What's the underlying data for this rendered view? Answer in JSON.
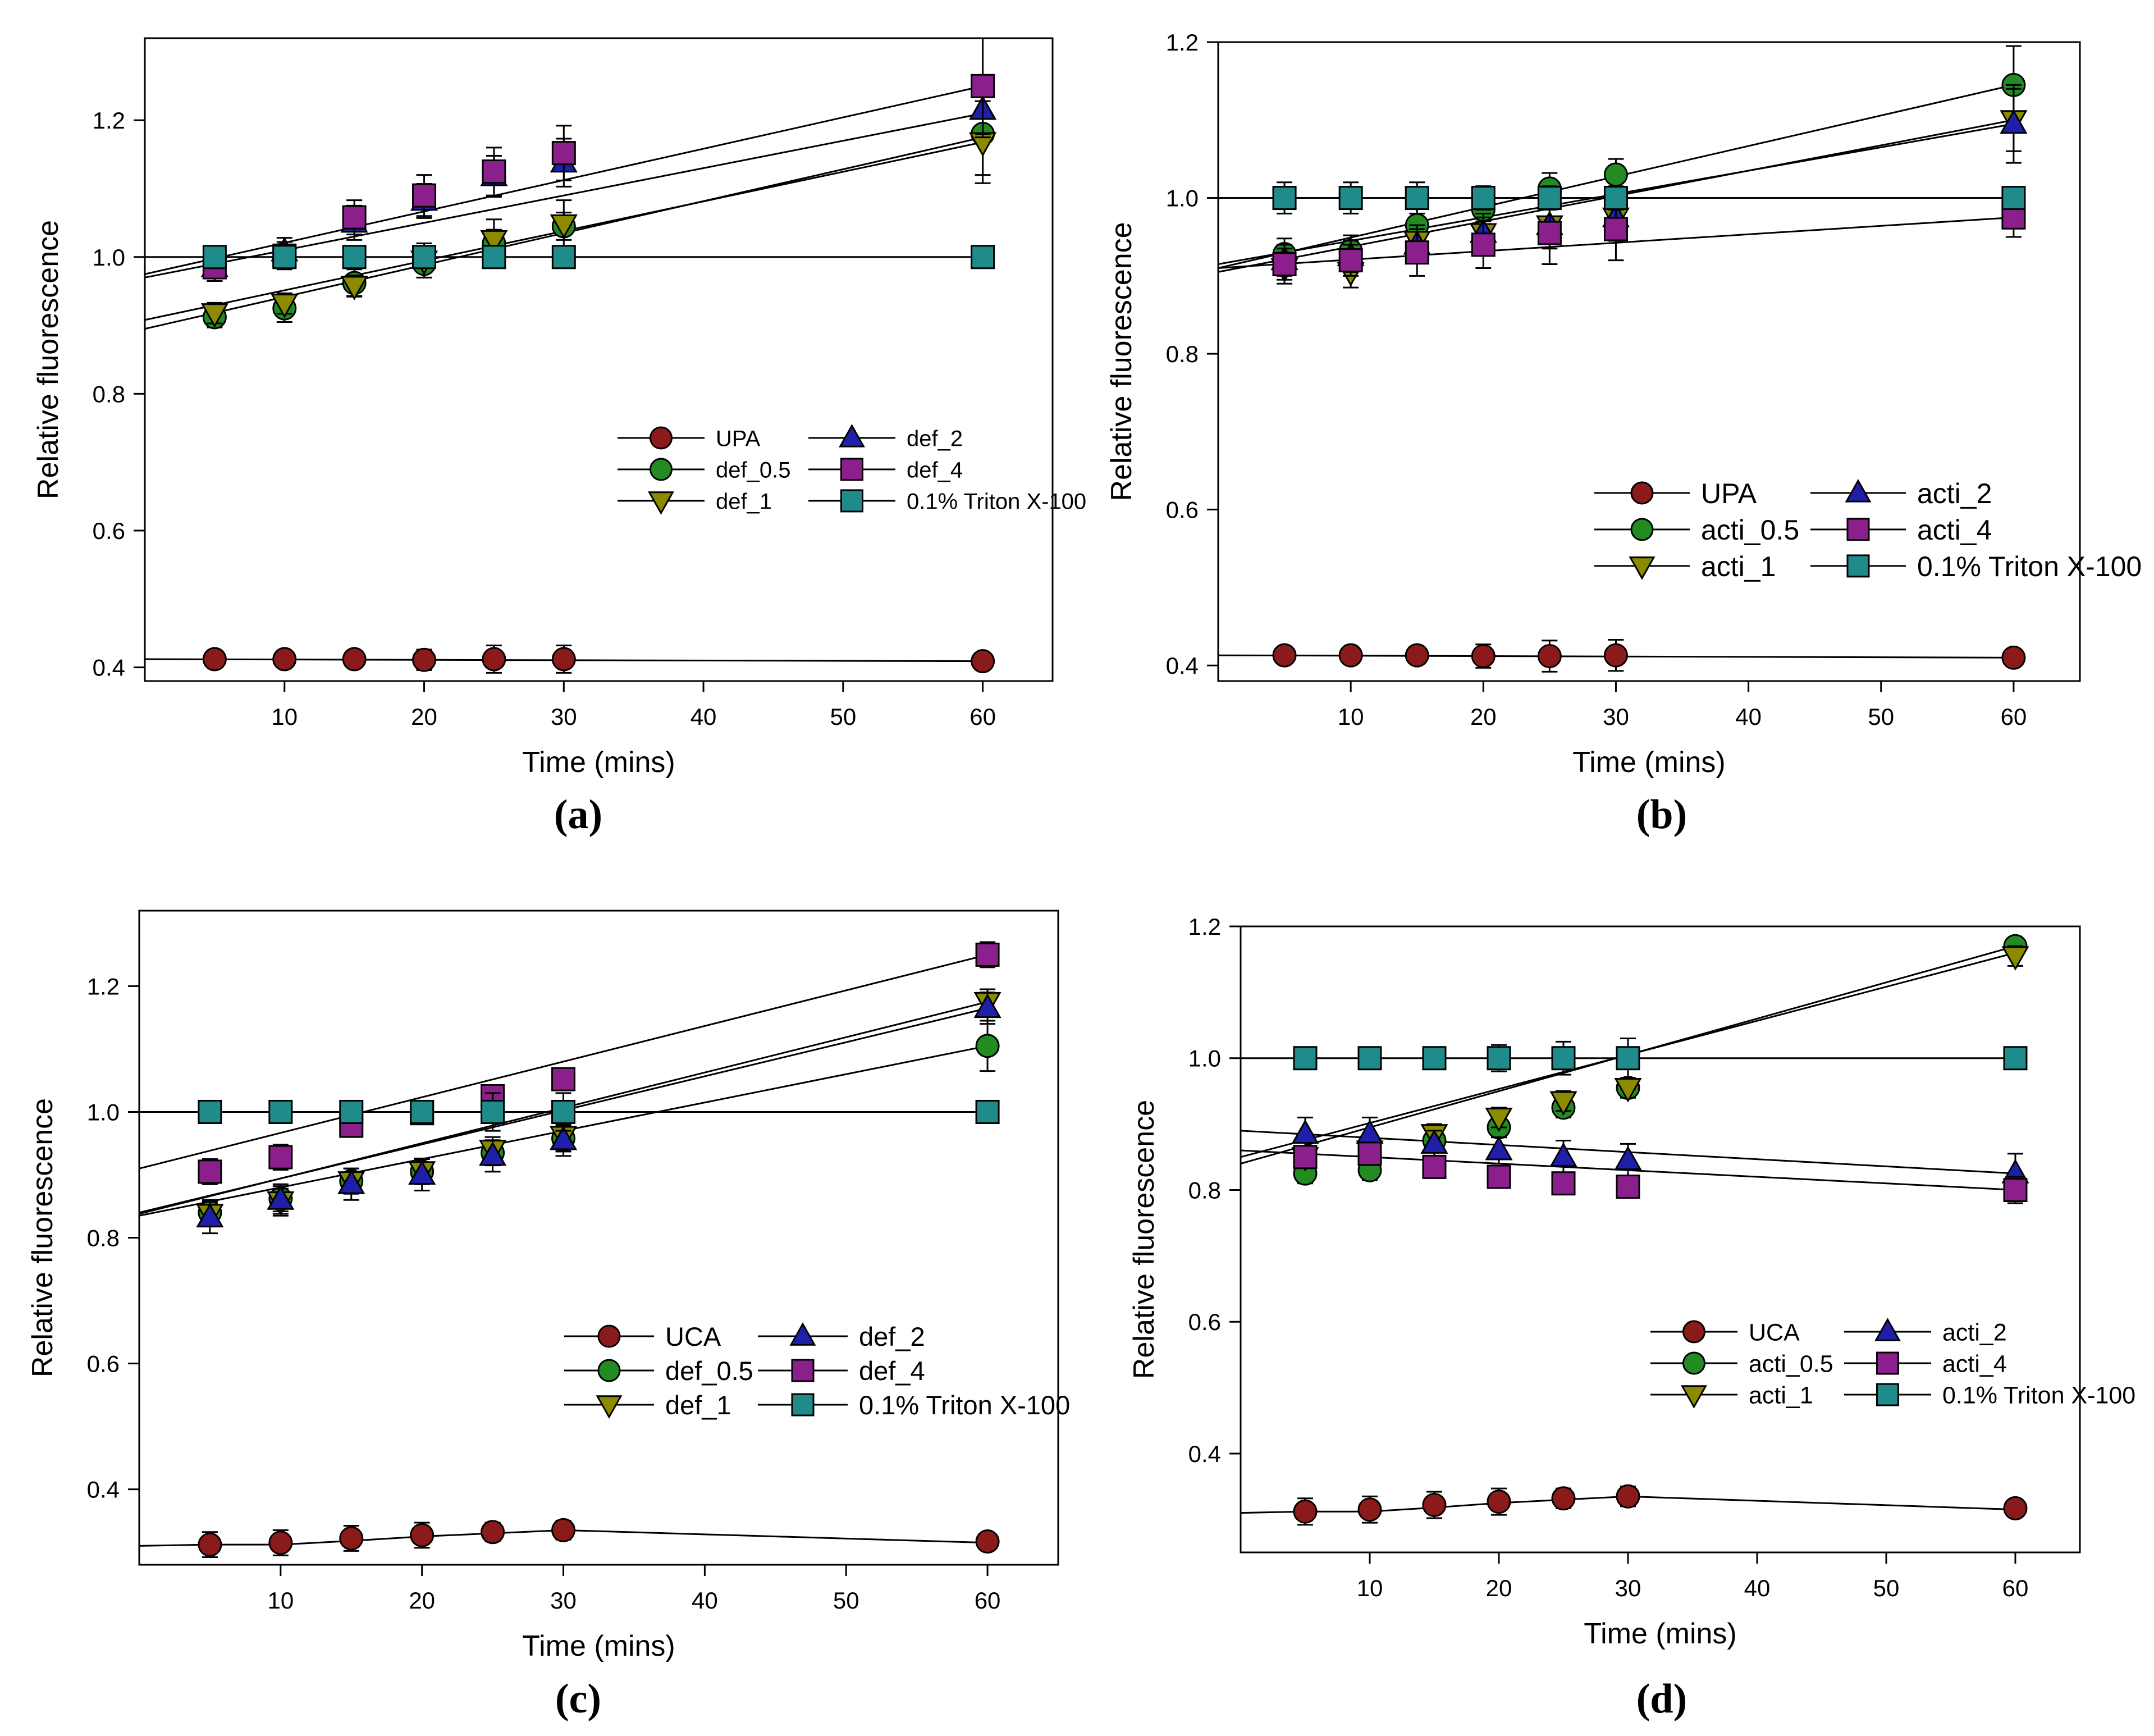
{
  "figure": {
    "panels": [
      "a",
      "b",
      "c",
      "d"
    ]
  },
  "colors": {
    "untreated": "#8B1A1A",
    "conc_0_5": "#228B22",
    "conc_1": "#8B8B00",
    "conc_2": "#1F1FAA",
    "conc_4": "#8B1F8B",
    "triton": "#1F8B8B",
    "line": "#000000"
  },
  "chart_data": [
    {
      "id": "a",
      "panel_label": "(a)",
      "type": "line",
      "xlabel": "Time (mins)",
      "ylabel": "Relative fluorescence",
      "xlim": [
        0,
        65
      ],
      "ylim": [
        0.38,
        1.32
      ],
      "xticks": [
        10,
        20,
        30,
        40,
        50,
        60
      ],
      "xtick_labels": [
        "10",
        "20",
        "30",
        "40",
        "50",
        "60"
      ],
      "yticks": [
        0.4,
        0.6,
        0.8,
        1.0,
        1.2
      ],
      "ytick_labels": [
        "0.4",
        "0.6",
        "0.8",
        "1.0",
        "1.2"
      ],
      "x": [
        5,
        10,
        15,
        20,
        25,
        30,
        60
      ],
      "legend_position": "lower-right",
      "series": [
        {
          "name": "UPA",
          "marker": "circle",
          "color_key": "untreated",
          "values": [
            0.412,
            0.412,
            0.412,
            0.411,
            0.412,
            0.412,
            0.409
          ],
          "errors": [
            0.01,
            0.01,
            0.01,
            0.015,
            0.02,
            0.02,
            0.01
          ],
          "fit": [
            0.412,
            0.409
          ]
        },
        {
          "name": "def_0.5",
          "marker": "circle",
          "color_key": "conc_0_5",
          "values": [
            0.912,
            0.925,
            0.962,
            0.99,
            1.02,
            1.045,
            1.18
          ],
          "errors": [
            0.015,
            0.02,
            0.02,
            0.02,
            0.02,
            0.02,
            0.06
          ],
          "fit": [
            0.895,
            1.175
          ]
        },
        {
          "name": "def_1",
          "marker": "triangle-down",
          "color_key": "conc_1",
          "values": [
            0.918,
            0.932,
            0.958,
            0.995,
            1.025,
            1.048,
            1.168
          ],
          "errors": [
            0.015,
            0.015,
            0.015,
            0.025,
            0.03,
            0.035,
            0.06
          ],
          "fit": [
            0.908,
            1.168
          ]
        },
        {
          "name": "def_2",
          "marker": "triangle-up",
          "color_key": "conc_2",
          "values": [
            0.985,
            1.008,
            1.05,
            1.082,
            1.118,
            1.138,
            1.215
          ],
          "errors": [
            0.02,
            0.02,
            0.025,
            0.025,
            0.03,
            0.035,
            0.04
          ],
          "fit": [
            0.97,
            1.21
          ]
        },
        {
          "name": "def_4",
          "marker": "square",
          "color_key": "conc_4",
          "values": [
            0.985,
            1.002,
            1.058,
            1.09,
            1.125,
            1.152,
            1.25
          ],
          "errors": [
            0.02,
            0.02,
            0.025,
            0.03,
            0.035,
            0.04,
            0.07
          ],
          "fit": [
            0.975,
            1.25
          ]
        },
        {
          "name": "0.1% Triton X-100",
          "marker": "square",
          "color_key": "triton",
          "values": [
            1.0,
            1.0,
            1.0,
            1.0,
            1.0,
            1.0,
            1.0
          ],
          "errors": [
            0.015,
            0.015,
            0.015,
            0.015,
            0.01,
            0.005,
            0.0
          ],
          "fit": [
            1.0,
            1.0
          ]
        }
      ]
    },
    {
      "id": "b",
      "panel_label": "(b)",
      "type": "line",
      "xlabel": "Time (mins)",
      "ylabel": "Relative fluorescence",
      "xlim": [
        0,
        65
      ],
      "ylim": [
        0.38,
        1.2
      ],
      "xticks": [
        10,
        20,
        30,
        40,
        50,
        60
      ],
      "xtick_labels": [
        "10",
        "20",
        "30",
        "40",
        "50",
        "60"
      ],
      "yticks": [
        0.4,
        0.6,
        0.8,
        1.0,
        1.2
      ],
      "ytick_labels": [
        "0.4",
        "0.6",
        "0.8",
        "1.0",
        "1.2"
      ],
      "x": [
        5,
        10,
        15,
        20,
        25,
        30,
        60
      ],
      "legend_position": "lower-right",
      "series": [
        {
          "name": "UPA",
          "marker": "circle",
          "color_key": "untreated",
          "values": [
            0.413,
            0.413,
            0.413,
            0.412,
            0.412,
            0.413,
            0.41
          ],
          "errors": [
            0.01,
            0.01,
            0.01,
            0.015,
            0.02,
            0.02,
            0.01
          ],
          "fit": [
            0.413,
            0.41
          ]
        },
        {
          "name": "acti_0.5",
          "marker": "circle",
          "color_key": "conc_0_5",
          "values": [
            0.928,
            0.932,
            0.965,
            0.985,
            1.012,
            1.03,
            1.145
          ],
          "errors": [
            0.02,
            0.02,
            0.025,
            0.03,
            0.02,
            0.02,
            0.05
          ],
          "fit": [
            0.91,
            1.145
          ]
        },
        {
          "name": "acti_1",
          "marker": "triangle-down",
          "color_key": "conc_1",
          "values": [
            0.91,
            0.905,
            0.945,
            0.955,
            0.965,
            0.975,
            1.1
          ],
          "errors": [
            0.02,
            0.02,
            0.02,
            0.02,
            0.02,
            0.03,
            0.04
          ],
          "fit": [
            0.905,
            1.1
          ]
        },
        {
          "name": "acti_2",
          "marker": "triangle-up",
          "color_key": "conc_2",
          "values": [
            0.92,
            0.925,
            0.94,
            0.955,
            0.965,
            0.975,
            1.095
          ],
          "errors": [
            0.02,
            0.02,
            0.02,
            0.025,
            0.03,
            0.03,
            0.05
          ],
          "fit": [
            0.915,
            1.095
          ]
        },
        {
          "name": "acti_4",
          "marker": "square",
          "color_key": "conc_4",
          "values": [
            0.915,
            0.92,
            0.93,
            0.94,
            0.955,
            0.96,
            0.975
          ],
          "errors": [
            0.02,
            0.02,
            0.03,
            0.03,
            0.04,
            0.04,
            0.025
          ],
          "fit": [
            0.91,
            0.975
          ]
        },
        {
          "name": "0.1% Triton X-100",
          "marker": "square",
          "color_key": "triton",
          "values": [
            1.0,
            1.0,
            1.0,
            1.0,
            1.0,
            1.0,
            1.0
          ],
          "errors": [
            0.02,
            0.02,
            0.02,
            0.015,
            0.015,
            0.015,
            0.0
          ],
          "fit": [
            1.0,
            1.0
          ]
        }
      ]
    },
    {
      "id": "c",
      "panel_label": "(c)",
      "type": "line",
      "xlabel": "Time (mins)",
      "ylabel": "Relative fluorescence",
      "xlim": [
        0,
        65
      ],
      "ylim": [
        0.28,
        1.32
      ],
      "xticks": [
        10,
        20,
        30,
        40,
        50,
        60
      ],
      "xtick_labels": [
        "10",
        "20",
        "30",
        "40",
        "50",
        "60"
      ],
      "yticks": [
        0.4,
        0.6,
        0.8,
        1.0,
        1.2
      ],
      "ytick_labels": [
        "0.4",
        "0.6",
        "0.8",
        "1.0",
        "1.2"
      ],
      "x": [
        5,
        10,
        15,
        20,
        25,
        30,
        60
      ],
      "legend_position": "lower-right",
      "series": [
        {
          "name": "UCA",
          "marker": "circle",
          "color_key": "untreated",
          "values": [
            0.312,
            0.315,
            0.322,
            0.327,
            0.332,
            0.335,
            0.317
          ],
          "errors": [
            0.02,
            0.02,
            0.02,
            0.02,
            0.015,
            0.015,
            0.01
          ],
          "fit": [
            0.31,
            0.312,
            0.318,
            0.325,
            0.33,
            0.335,
            0.315
          ]
        },
        {
          "name": "def_0.5",
          "marker": "circle",
          "color_key": "conc_0_5",
          "values": [
            0.84,
            0.862,
            0.89,
            0.905,
            0.935,
            0.958,
            1.105
          ],
          "errors": [
            0.02,
            0.02,
            0.02,
            0.02,
            0.02,
            0.02,
            0.04
          ],
          "fit": [
            0.835,
            1.105
          ]
        },
        {
          "name": "def_1",
          "marker": "triangle-down",
          "color_key": "conc_1",
          "values": [
            0.838,
            0.858,
            0.89,
            0.906,
            0.94,
            0.962,
            1.175
          ],
          "errors": [
            0.02,
            0.02,
            0.02,
            0.02,
            0.02,
            0.025,
            0.02
          ],
          "fit": [
            0.838,
            1.175
          ]
        },
        {
          "name": "def_2",
          "marker": "triangle-up",
          "color_key": "conc_2",
          "values": [
            0.832,
            0.86,
            0.885,
            0.9,
            0.93,
            0.955,
            1.165
          ],
          "errors": [
            0.025,
            0.025,
            0.025,
            0.025,
            0.025,
            0.025,
            0.025
          ],
          "fit": [
            0.84,
            1.165
          ]
        },
        {
          "name": "def_4",
          "marker": "square",
          "color_key": "conc_4",
          "values": [
            0.905,
            0.928,
            0.978,
            0.998,
            1.025,
            1.052,
            1.25
          ],
          "errors": [
            0.02,
            0.02,
            0.015,
            0.015,
            0.015,
            0.015,
            0.02
          ],
          "fit": [
            0.91,
            1.25
          ]
        },
        {
          "name": "0.1% Triton X-100",
          "marker": "square",
          "color_key": "triton",
          "values": [
            1.0,
            1.0,
            1.0,
            1.0,
            1.0,
            1.0,
            1.0
          ],
          "errors": [
            0.01,
            0.01,
            0.01,
            0.015,
            0.03,
            0.03,
            0.0
          ],
          "fit": [
            1.0,
            1.0
          ]
        }
      ]
    },
    {
      "id": "d",
      "panel_label": "(d)",
      "type": "line",
      "xlabel": "Time (mins)",
      "ylabel": "Relative fluorescence",
      "xlim": [
        0,
        65
      ],
      "ylim": [
        0.25,
        1.2
      ],
      "xticks": [
        10,
        20,
        30,
        40,
        50,
        60
      ],
      "xtick_labels": [
        "10",
        "20",
        "30",
        "40",
        "50",
        "60"
      ],
      "yticks": [
        0.4,
        0.6,
        0.8,
        1.0,
        1.2
      ],
      "ytick_labels": [
        "0.4",
        "0.6",
        "0.8",
        "1.0",
        "1.2"
      ],
      "x": [
        5,
        10,
        15,
        20,
        25,
        30,
        60
      ],
      "legend_position": "lower-right",
      "series": [
        {
          "name": "UCA",
          "marker": "circle",
          "color_key": "untreated",
          "values": [
            0.312,
            0.315,
            0.322,
            0.327,
            0.332,
            0.335,
            0.317
          ],
          "errors": [
            0.02,
            0.02,
            0.02,
            0.02,
            0.015,
            0.015,
            0.01
          ],
          "fit": [
            0.31,
            0.312,
            0.318,
            0.325,
            0.33,
            0.335,
            0.315
          ]
        },
        {
          "name": "acti_0.5",
          "marker": "circle",
          "color_key": "conc_0_5",
          "values": [
            0.825,
            0.83,
            0.875,
            0.895,
            0.925,
            0.955,
            1.17
          ],
          "errors": [
            0.015,
            0.015,
            0.015,
            0.015,
            0.015,
            0.015,
            0.01
          ],
          "fit": [
            0.84,
            1.17
          ]
        },
        {
          "name": "acti_1",
          "marker": "triangle-down",
          "color_key": "conc_1",
          "values": [
            0.85,
            0.86,
            0.885,
            0.91,
            0.935,
            0.955,
            1.155
          ],
          "errors": [
            0.015,
            0.015,
            0.015,
            0.015,
            0.015,
            0.015,
            0.015
          ],
          "fit": [
            0.85,
            1.16
          ]
        },
        {
          "name": "acti_2",
          "marker": "triangle-up",
          "color_key": "conc_2",
          "values": [
            0.885,
            0.885,
            0.87,
            0.86,
            0.85,
            0.845,
            0.825
          ],
          "errors": [
            0.025,
            0.025,
            0.02,
            0.02,
            0.025,
            0.025,
            0.03
          ],
          "fit": [
            0.89,
            0.825
          ]
        },
        {
          "name": "acti_4",
          "marker": "square",
          "color_key": "conc_4",
          "values": [
            0.85,
            0.855,
            0.835,
            0.82,
            0.81,
            0.805,
            0.8
          ],
          "errors": [
            0.015,
            0.015,
            0.015,
            0.015,
            0.015,
            0.015,
            0.02
          ],
          "fit": [
            0.86,
            0.8
          ]
        },
        {
          "name": "0.1% Triton X-100",
          "marker": "square",
          "color_key": "triton",
          "values": [
            1.0,
            1.0,
            1.0,
            1.0,
            1.0,
            1.0,
            1.0
          ],
          "errors": [
            0.0,
            0.0,
            0.0,
            0.02,
            0.025,
            0.03,
            0.0
          ],
          "fit": [
            1.0,
            1.0
          ]
        }
      ]
    }
  ]
}
